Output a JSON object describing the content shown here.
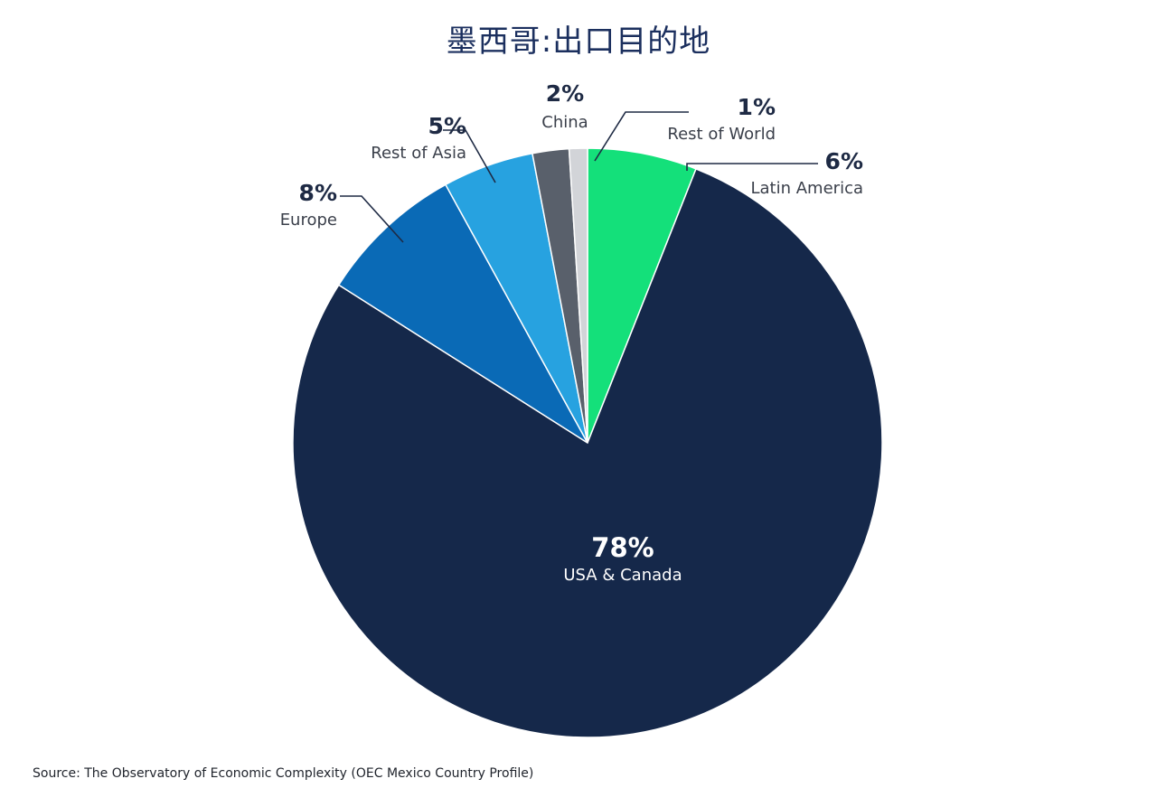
{
  "title": "墨西哥:出口目的地",
  "source": "Source: The Observatory of Economic Complexity (OEC Mexico Country Profile)",
  "chart_data": {
    "type": "pie",
    "title": "墨西哥:出口目的地",
    "slices": [
      {
        "label": "Latin America",
        "value": 6,
        "display": "6%",
        "color": "#14e07a"
      },
      {
        "label": "USA & Canada",
        "value": 78,
        "display": "78%",
        "color": "#15284a"
      },
      {
        "label": "Europe",
        "value": 8,
        "display": "8%",
        "color": "#0a6ab6"
      },
      {
        "label": "Rest of Asia",
        "value": 5,
        "display": "5%",
        "color": "#27a2e0"
      },
      {
        "label": "China",
        "value": 2,
        "display": "2%",
        "color": "#59606b"
      },
      {
        "label": "Rest of World",
        "value": 1,
        "display": "1%",
        "color": "#d2d4d8"
      }
    ],
    "legend": "none"
  }
}
